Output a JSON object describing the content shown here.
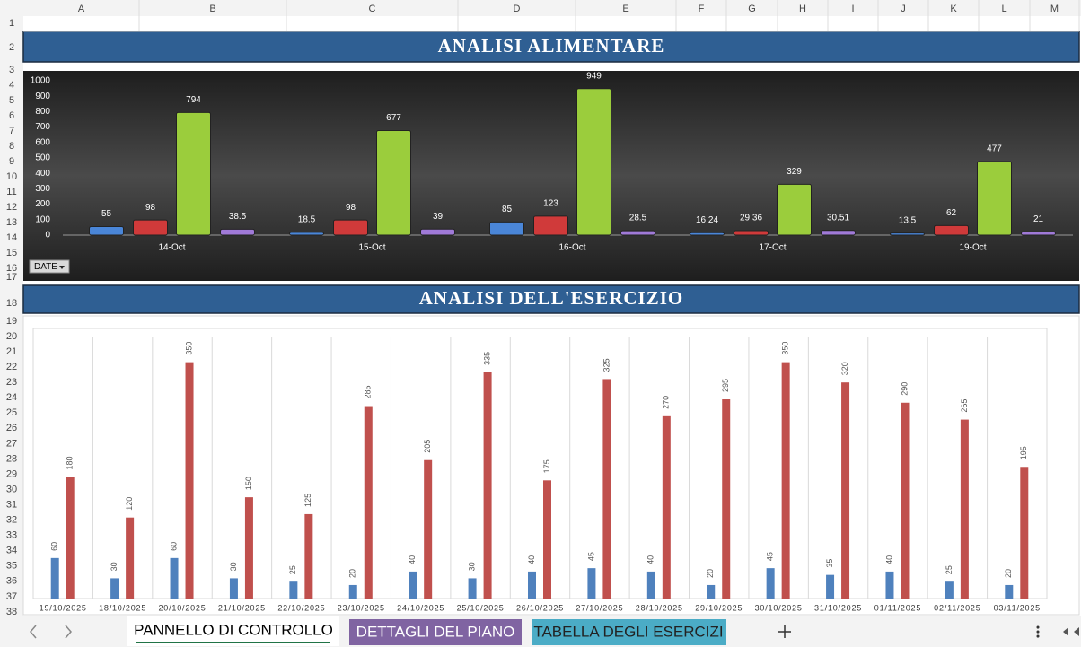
{
  "column_headers": [
    "A",
    "B",
    "C",
    "D",
    "E",
    "F",
    "G",
    "H",
    "I",
    "J",
    "K",
    "L",
    "M"
  ],
  "row_headers": [
    1,
    2,
    3,
    4,
    5,
    6,
    7,
    8,
    9,
    10,
    11,
    12,
    13,
    14,
    15,
    16,
    17,
    18,
    19,
    20,
    21,
    22,
    23,
    24,
    25,
    26,
    27,
    28,
    29,
    30,
    31,
    32,
    33,
    34,
    35,
    36,
    37,
    38
  ],
  "filter_button": "DATE",
  "sheet_tabs": [
    "PANNELLO DI CONTROLLO",
    "DETTAGLI DEL PIANO",
    "TABELLA DEGLI ESERCIZI"
  ],
  "chart_data": [
    {
      "type": "bar",
      "title": "ANALISI ALIMENTARE",
      "categories": [
        "14-Oct",
        "15-Oct",
        "16-Oct",
        "17-Oct",
        "19-Oct"
      ],
      "series": [
        {
          "color": "#4a86d8",
          "values": [
            55,
            18.5,
            85,
            16.24,
            13.5
          ]
        },
        {
          "color": "#d03a3a",
          "values": [
            98,
            98,
            123,
            29.36,
            62
          ]
        },
        {
          "color": "#9bcd3c",
          "values": [
            794,
            677,
            949,
            329,
            477
          ]
        },
        {
          "color": "#a07ad8",
          "values": [
            38.5,
            39,
            28.5,
            30.51,
            21
          ]
        }
      ],
      "ylim": [
        0,
        1000
      ],
      "yticks": [
        0,
        100,
        200,
        300,
        400,
        500,
        600,
        700,
        800,
        900,
        1000
      ],
      "grid": false
    },
    {
      "type": "bar",
      "title": "ANALISI DELL'ESERCIZIO",
      "categories": [
        "19/10/2025",
        "18/10/2025",
        "20/10/2025",
        "21/10/2025",
        "22/10/2025",
        "23/10/2025",
        "24/10/2025",
        "25/10/2025",
        "26/10/2025",
        "27/10/2025",
        "28/10/2025",
        "29/10/2025",
        "30/10/2025",
        "31/10/2025",
        "01/11/2025",
        "02/11/2025",
        "03/11/2025"
      ],
      "series": [
        {
          "color": "#4f81bd",
          "values": [
            60,
            30,
            60,
            30,
            25,
            20,
            40,
            30,
            40,
            45,
            40,
            20,
            45,
            35,
            40,
            25,
            20
          ]
        },
        {
          "color": "#c0504d",
          "values": [
            180,
            120,
            350,
            150,
            125,
            285,
            205,
            335,
            175,
            325,
            270,
            295,
            350,
            320,
            290,
            265,
            195
          ]
        }
      ],
      "ylim": [
        0,
        400
      ],
      "grid": true
    }
  ]
}
